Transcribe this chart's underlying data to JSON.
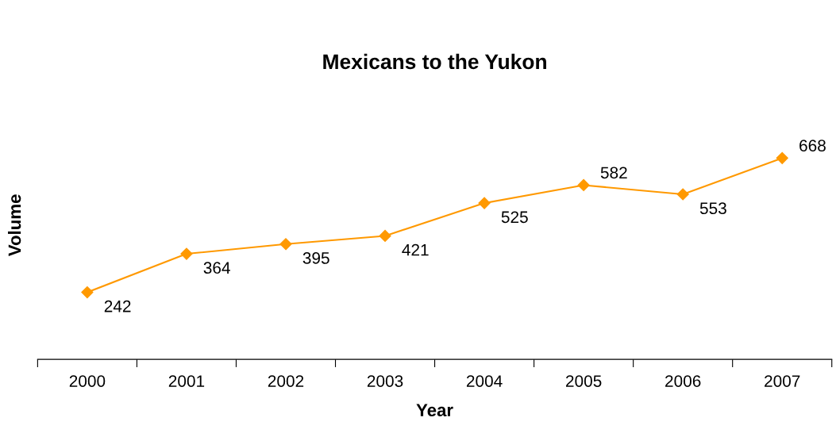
{
  "chart_data": {
    "type": "line",
    "title": "Mexicans to the Yukon",
    "xlabel": "Year",
    "ylabel": "Volume",
    "categories": [
      "2000",
      "2001",
      "2002",
      "2003",
      "2004",
      "2005",
      "2006",
      "2007"
    ],
    "series": [
      {
        "color": "#ff9900",
        "values": [
          242,
          364,
          395,
          421,
          525,
          582,
          553,
          668
        ]
      }
    ],
    "data_labels": true,
    "marker": "diamond",
    "line_style": "solid",
    "grid": false,
    "legend": false
  }
}
